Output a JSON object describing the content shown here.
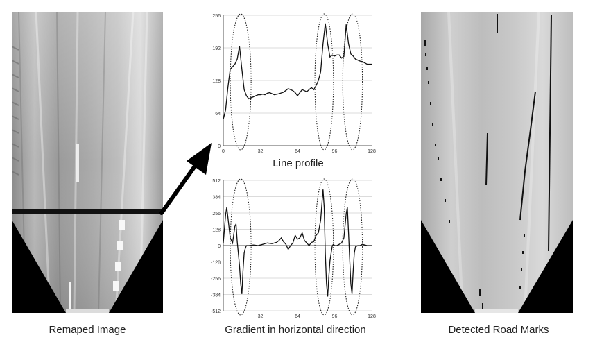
{
  "captions": {
    "left": "Remaped Image",
    "middle": "Gradient in horizontal direction",
    "right": "Detected Road Marks"
  },
  "chart_data": [
    {
      "type": "line",
      "title": "Line profile",
      "xlabel": "",
      "ylabel": "",
      "xlim": [
        0,
        128
      ],
      "ylim": [
        0,
        256
      ],
      "xticks": [
        0,
        32,
        64,
        96,
        128
      ],
      "yticks": [
        0,
        64,
        128,
        192,
        256
      ],
      "grid": true,
      "x": [
        0,
        2,
        4,
        6,
        8,
        10,
        12,
        14,
        16,
        18,
        20,
        22,
        24,
        26,
        28,
        30,
        32,
        34,
        36,
        38,
        40,
        44,
        48,
        52,
        56,
        60,
        62,
        64,
        66,
        68,
        70,
        72,
        74,
        76,
        78,
        80,
        82,
        84,
        86,
        88,
        90,
        92,
        94,
        96,
        98,
        100,
        102,
        104,
        106,
        108,
        110,
        112,
        114,
        116,
        118,
        120,
        124,
        128
      ],
      "values": [
        52,
        70,
        115,
        150,
        155,
        160,
        170,
        195,
        150,
        110,
        98,
        92,
        94,
        96,
        98,
        100,
        100,
        101,
        100,
        103,
        104,
        100,
        102,
        105,
        112,
        108,
        104,
        98,
        104,
        110,
        108,
        106,
        110,
        114,
        110,
        118,
        128,
        145,
        200,
        240,
        200,
        174,
        178,
        176,
        178,
        178,
        172,
        175,
        238,
        200,
        180,
        176,
        170,
        168,
        166,
        165,
        160,
        160
      ],
      "ellipse_regions": [
        [
          6,
          24
        ],
        [
          79,
          95
        ],
        [
          103,
          120
        ]
      ]
    },
    {
      "type": "line",
      "title": "",
      "xlabel": "",
      "ylabel": "",
      "xlim": [
        0,
        128
      ],
      "ylim": [
        -512,
        512
      ],
      "xticks": [
        0,
        32,
        64,
        96,
        128
      ],
      "yticks": [
        512,
        384,
        256,
        128,
        0,
        -128,
        -256,
        -384,
        -512
      ],
      "ytick_labels": [
        "512",
        "384",
        "256",
        "128",
        "0",
        "-128",
        "-256",
        "-384",
        "-512"
      ],
      "xtick_labels": [
        "32",
        "64",
        "96",
        "128"
      ],
      "grid": true,
      "x": [
        0,
        2,
        3,
        4,
        6,
        8,
        10,
        11,
        12,
        13,
        14,
        15,
        16,
        17,
        18,
        19,
        20,
        22,
        26,
        30,
        34,
        38,
        42,
        46,
        48,
        50,
        52,
        54,
        56,
        58,
        60,
        62,
        64,
        66,
        68,
        70,
        72,
        74,
        76,
        78,
        80,
        82,
        84,
        86,
        87,
        88,
        89,
        90,
        91,
        92,
        93,
        94,
        95,
        96,
        98,
        100,
        102,
        104,
        106,
        107,
        108,
        109,
        110,
        111,
        112,
        113,
        114,
        116,
        118,
        120,
        124,
        128
      ],
      "values": [
        20,
        240,
        300,
        220,
        60,
        20,
        150,
        170,
        30,
        -60,
        -160,
        -300,
        -380,
        -200,
        -60,
        -20,
        0,
        0,
        5,
        0,
        10,
        20,
        15,
        25,
        40,
        60,
        30,
        10,
        -30,
        0,
        20,
        80,
        50,
        60,
        100,
        40,
        20,
        0,
        25,
        30,
        80,
        100,
        200,
        440,
        300,
        -60,
        -300,
        -400,
        -250,
        -120,
        -60,
        0,
        10,
        0,
        0,
        10,
        20,
        60,
        250,
        300,
        100,
        -100,
        -300,
        -380,
        -200,
        -60,
        -10,
        0,
        0,
        10,
        0,
        0
      ],
      "ellipse_regions": [
        [
          6,
          24
        ],
        [
          79,
          95
        ],
        [
          103,
          120
        ]
      ]
    }
  ]
}
